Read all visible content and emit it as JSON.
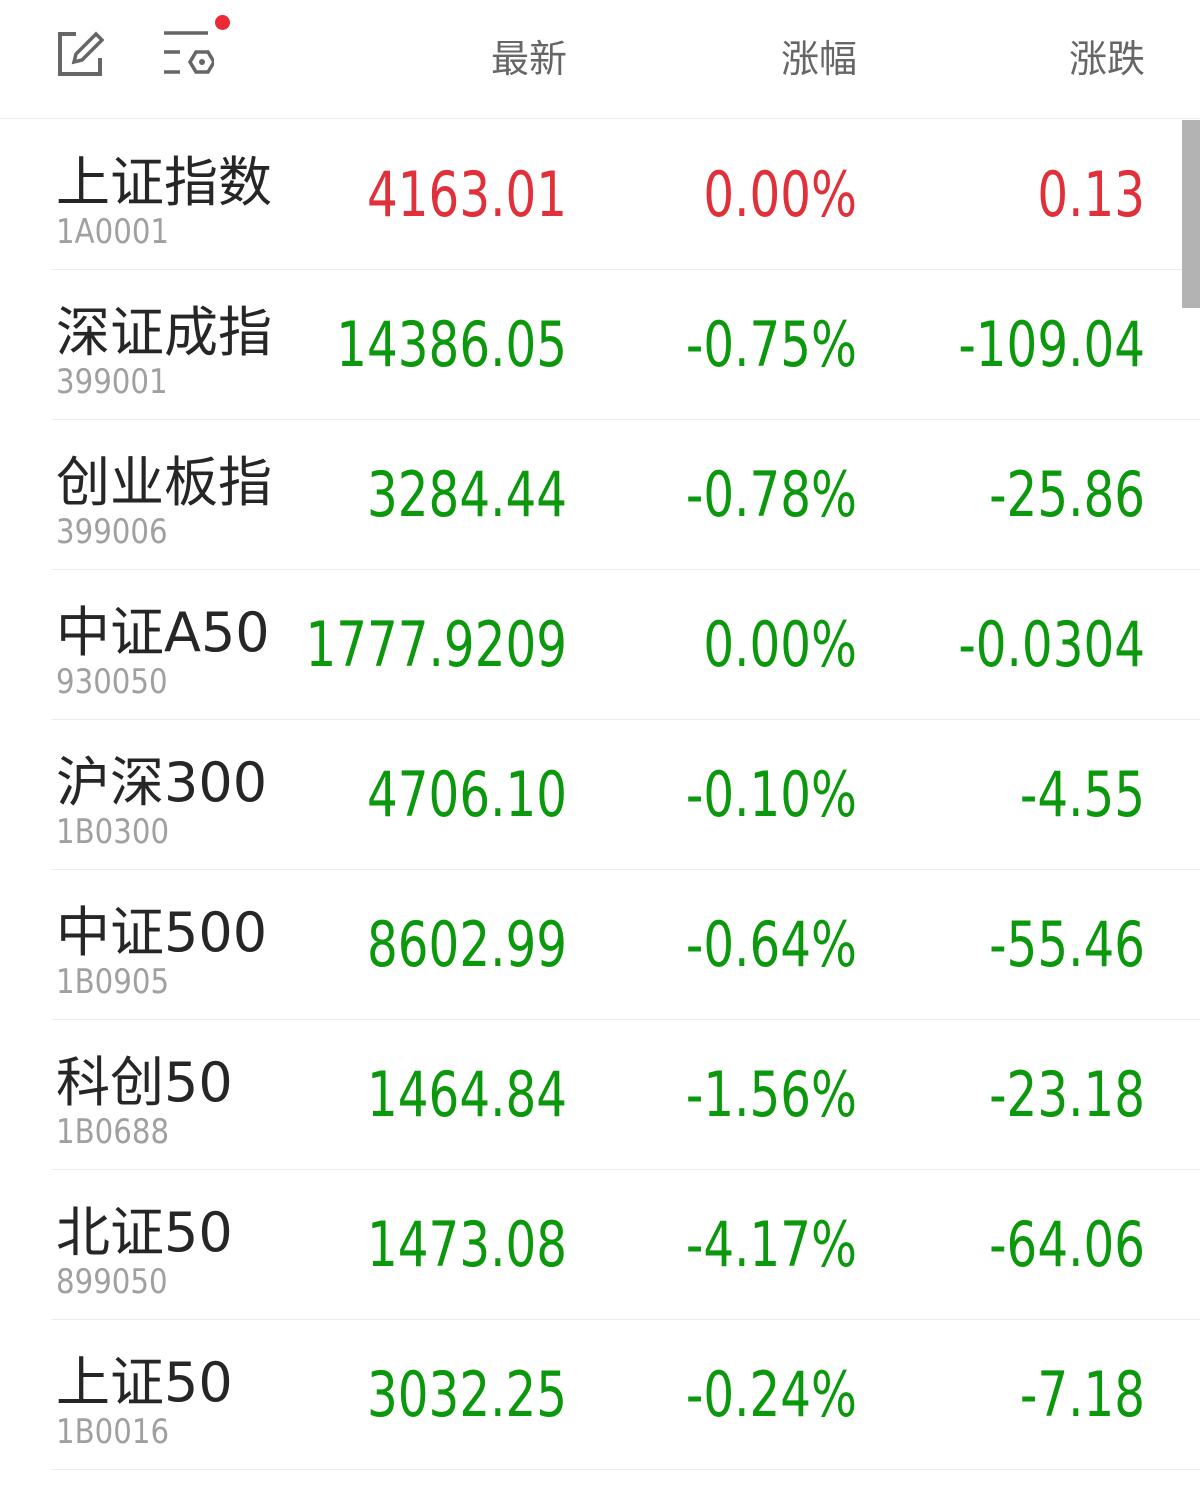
{
  "header": {
    "icons": [
      "edit-icon",
      "settings-filter-icon"
    ],
    "notification_dot": "#ec2a36",
    "columns": [
      "最新",
      "涨幅",
      "涨跌"
    ]
  },
  "colors": {
    "up": "#e0313a",
    "down": "#0c980c"
  },
  "rows": [
    {
      "name": "上证指数",
      "code": "1A0001",
      "last": "4163.01",
      "pct": "0.00%",
      "chg": "0.13",
      "trend": "up"
    },
    {
      "name": "深证成指",
      "code": "399001",
      "last": "14386.05",
      "pct": "-0.75%",
      "chg": "-109.04",
      "trend": "down"
    },
    {
      "name": "创业板指",
      "code": "399006",
      "last": "3284.44",
      "pct": "-0.78%",
      "chg": "-25.86",
      "trend": "down"
    },
    {
      "name": "中证A50",
      "code": "930050",
      "last": "1777.9209",
      "pct": "0.00%",
      "chg": "-0.0304",
      "trend": "down"
    },
    {
      "name": "沪深300",
      "code": "1B0300",
      "last": "4706.10",
      "pct": "-0.10%",
      "chg": "-4.55",
      "trend": "down"
    },
    {
      "name": "中证500",
      "code": "1B0905",
      "last": "8602.99",
      "pct": "-0.64%",
      "chg": "-55.46",
      "trend": "down"
    },
    {
      "name": "科创50",
      "code": "1B0688",
      "last": "1464.84",
      "pct": "-1.56%",
      "chg": "-23.18",
      "trend": "down"
    },
    {
      "name": "北证50",
      "code": "899050",
      "last": "1473.08",
      "pct": "-4.17%",
      "chg": "-64.06",
      "trend": "down"
    },
    {
      "name": "上证50",
      "code": "1B0016",
      "last": "3032.25",
      "pct": "-0.24%",
      "chg": "-7.18",
      "trend": "down"
    }
  ]
}
